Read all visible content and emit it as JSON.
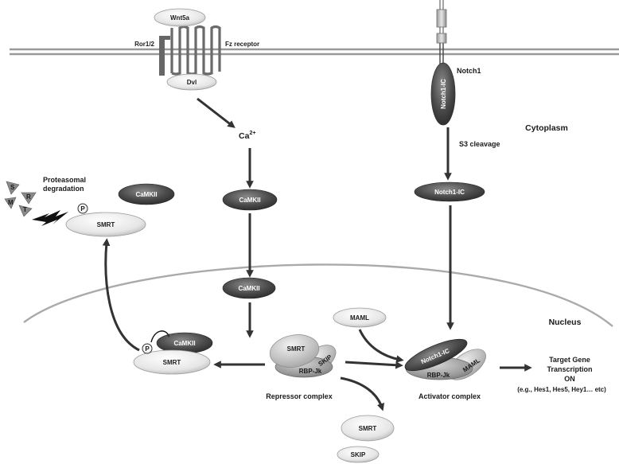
{
  "membrane": {
    "ror": "Ror1/2",
    "wnt5a": "Wnt5a",
    "fz": "Fz receptor",
    "dvl": "Dvl",
    "notch1": "Notch1",
    "notch1_ic_membrane": "Notch1-IC"
  },
  "cytoplasm": {
    "region": "Cytoplasm",
    "ca_base": "Ca",
    "ca_sup": "2+",
    "camkii_cyto": "CaMKII",
    "s3": "S3 cleavage",
    "notch1_ic_cyto": "Notch1-IC",
    "proteasome_line1": "Proteasomal",
    "proteasome_line2": "degradation",
    "camkii_left": "CaMKII",
    "smrt_cyto": "SMRT",
    "p_cyto": "P",
    "proteasome_glyphs": [
      "S",
      "R",
      "M",
      "T"
    ]
  },
  "nucleus": {
    "region": "Nucleus",
    "camkii_nuc": "CaMKII",
    "maml": "MAML",
    "camkii_p": "CaMKII",
    "smrt_p": "SMRT",
    "p_nuc": "P",
    "repressor": {
      "smrt": "SMRT",
      "skip": "SKIP",
      "rbp": "RBP-Jk",
      "label": "Repressor complex"
    },
    "activator": {
      "notch": "Notch1-IC",
      "maml": "MAML",
      "rbp": "RBP-Jk",
      "label": "Activator complex"
    },
    "released_smrt": "SMRT",
    "released_skip": "SKIP",
    "target": {
      "line1": "Target Gene",
      "line2": "Transcription",
      "line3": "ON",
      "line4": "(e.g., Hes1, Hes5, Hey1… etc)"
    }
  }
}
